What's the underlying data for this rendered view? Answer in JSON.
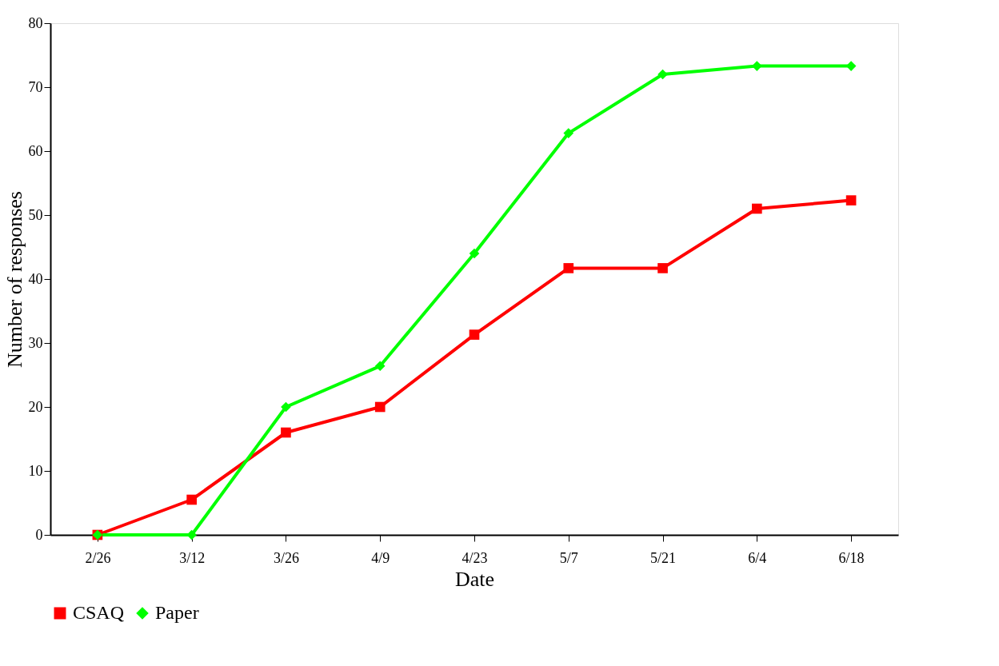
{
  "chart_data": {
    "type": "line",
    "xlabel": "Date",
    "ylabel": "Number of responses",
    "categories": [
      "2/26",
      "3/12",
      "3/26",
      "4/9",
      "4/23",
      "5/7",
      "5/21",
      "6/4",
      "6/18"
    ],
    "series": [
      {
        "name": "CSAQ",
        "color": "#ff0000",
        "marker": "square",
        "values": [
          0,
          5.5,
          16,
          20,
          31.3,
          41.7,
          41.7,
          51,
          52.3
        ]
      },
      {
        "name": "Paper",
        "color": "#00ff00",
        "marker": "diamond",
        "values": [
          0,
          0,
          20,
          26.4,
          44,
          62.8,
          72,
          73.3,
          73.3
        ]
      }
    ],
    "ylim": [
      0,
      80
    ],
    "yticks": [
      0,
      10,
      20,
      30,
      40,
      50,
      60,
      70,
      80
    ],
    "grid": false,
    "legend": "bottom",
    "line_style": "solid"
  }
}
